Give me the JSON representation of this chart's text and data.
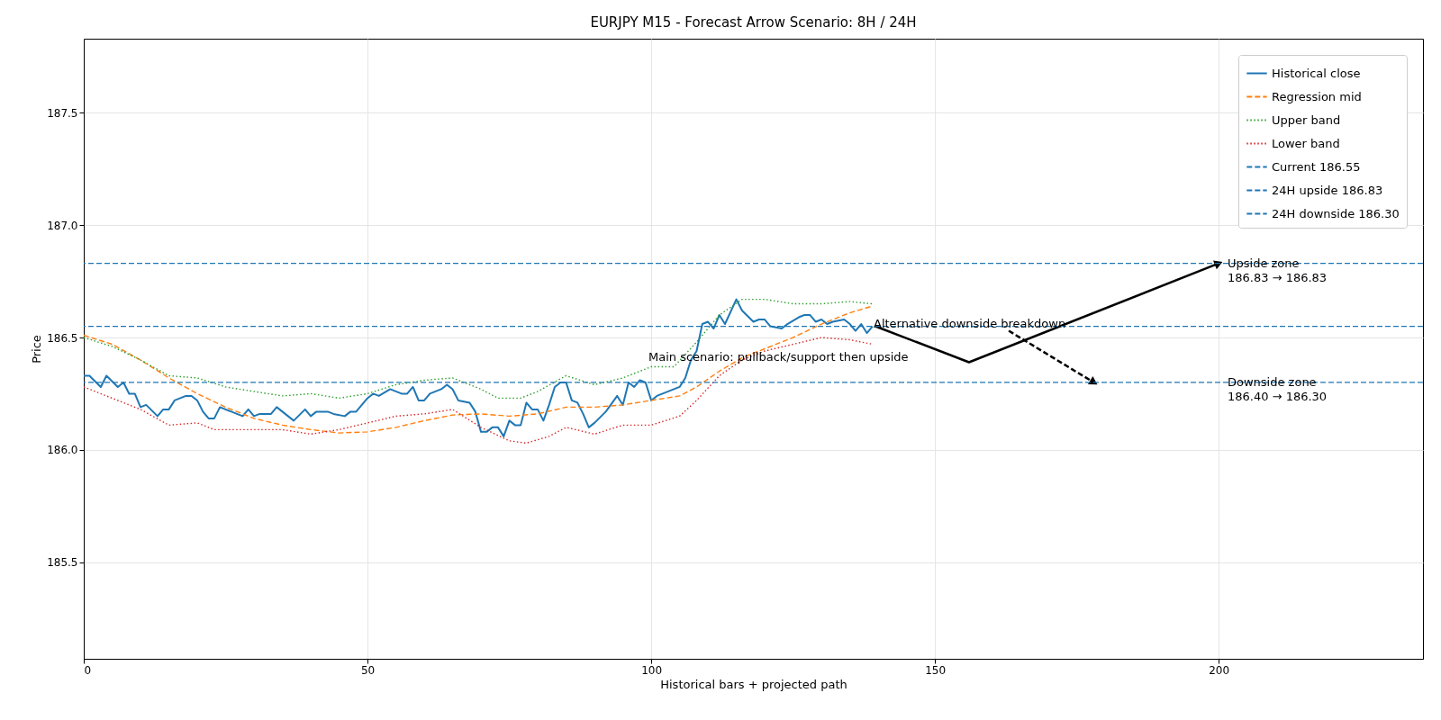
{
  "chart_data": {
    "type": "line",
    "title": "EURJPY M15 - Forecast Arrow Scenario: 8H / 24H",
    "xlabel": "Historical bars + projected path",
    "ylabel": "Price",
    "xlim": [
      0,
      236
    ],
    "xticks": [
      0,
      50,
      100,
      150,
      200
    ],
    "ylim": [
      185.07,
      187.83
    ],
    "yticks": [
      185.5,
      {
        "value": 186,
        "label": "186.0"
      },
      186.5,
      {
        "value": 187,
        "label": "187.0"
      },
      187.5
    ],
    "grid": true,
    "legend": "top right",
    "series": [
      {
        "name": "Historical close",
        "color": "#1f77b4",
        "line_style": "solid",
        "x": [
          0,
          1,
          3,
          4,
          6,
          7,
          8,
          9,
          10,
          11,
          13,
          14,
          15,
          16,
          18,
          19,
          20,
          21,
          22,
          23,
          24,
          26,
          28,
          29,
          30,
          31,
          33,
          34,
          36,
          37,
          39,
          40,
          41,
          43,
          44,
          46,
          47,
          48,
          50,
          51,
          52,
          54,
          56,
          57,
          58,
          59,
          60,
          61,
          63,
          64,
          65,
          66,
          68,
          69,
          70,
          71,
          72,
          73,
          74,
          75,
          76,
          77,
          78,
          79,
          80,
          81,
          82,
          83,
          84,
          85,
          86,
          87,
          88,
          89,
          90,
          92,
          94,
          95,
          96,
          97,
          98,
          99,
          100,
          101,
          103,
          105,
          106,
          107,
          108,
          109,
          110,
          111,
          112,
          113,
          115,
          116,
          118,
          119,
          120,
          121,
          123,
          124,
          126,
          127,
          128,
          129,
          130,
          131,
          132,
          134,
          135,
          136,
          137,
          138,
          139
        ],
        "values": [
          186.33,
          186.33,
          186.28,
          186.33,
          186.28,
          186.3,
          186.25,
          186.25,
          186.19,
          186.2,
          186.15,
          186.18,
          186.18,
          186.22,
          186.24,
          186.24,
          186.22,
          186.17,
          186.14,
          186.14,
          186.19,
          186.17,
          186.15,
          186.18,
          186.15,
          186.16,
          186.16,
          186.19,
          186.15,
          186.13,
          186.18,
          186.15,
          186.17,
          186.17,
          186.16,
          186.15,
          186.17,
          186.17,
          186.23,
          186.25,
          186.24,
          186.27,
          186.25,
          186.25,
          186.28,
          186.22,
          186.22,
          186.25,
          186.27,
          186.29,
          186.27,
          186.22,
          186.21,
          186.17,
          186.08,
          186.08,
          186.1,
          186.1,
          186.06,
          186.13,
          186.11,
          186.11,
          186.21,
          186.18,
          186.18,
          186.13,
          186.2,
          186.28,
          186.3,
          186.3,
          186.22,
          186.21,
          186.16,
          186.1,
          186.12,
          186.17,
          186.24,
          186.2,
          186.3,
          186.28,
          186.31,
          186.3,
          186.22,
          186.24,
          186.26,
          186.28,
          186.32,
          186.4,
          186.44,
          186.56,
          186.57,
          186.54,
          186.6,
          186.56,
          186.67,
          186.62,
          186.57,
          186.58,
          186.58,
          186.55,
          186.54,
          186.56,
          186.59,
          186.6,
          186.6,
          186.57,
          186.58,
          186.56,
          186.57,
          186.58,
          186.56,
          186.53,
          186.56,
          186.52,
          186.55
        ]
      },
      {
        "name": "Regression mid",
        "color": "#ff7f0e",
        "line_style": "dashed",
        "x": [
          0,
          5,
          10,
          15,
          20,
          25,
          30,
          35,
          40,
          45,
          50,
          55,
          60,
          65,
          70,
          75,
          80,
          85,
          90,
          95,
          100,
          105,
          108,
          112,
          116,
          120,
          125,
          130,
          135,
          139
        ],
        "values": [
          186.51,
          186.47,
          186.4,
          186.32,
          186.25,
          186.19,
          186.14,
          186.11,
          186.09,
          186.075,
          186.08,
          186.1,
          186.13,
          186.155,
          186.16,
          186.15,
          186.16,
          186.19,
          186.19,
          186.2,
          186.22,
          186.24,
          186.28,
          186.35,
          186.41,
          186.45,
          186.5,
          186.56,
          186.61,
          186.64
        ]
      },
      {
        "name": "Upper band",
        "color": "#2ca02c",
        "line_style": "dotted",
        "x": [
          0,
          5,
          10,
          15,
          20,
          25,
          30,
          35,
          40,
          45,
          50,
          55,
          60,
          65,
          70,
          73,
          77,
          80,
          85,
          90,
          95,
          100,
          104,
          108,
          112,
          116,
          120,
          125,
          130,
          135,
          139
        ],
        "values": [
          186.5,
          186.46,
          186.4,
          186.33,
          186.32,
          186.28,
          186.26,
          186.24,
          186.25,
          186.23,
          186.25,
          186.29,
          186.31,
          186.32,
          186.27,
          186.23,
          186.23,
          186.26,
          186.33,
          186.29,
          186.32,
          186.37,
          186.37,
          186.48,
          186.6,
          186.67,
          186.67,
          186.65,
          186.65,
          186.66,
          186.65
        ]
      },
      {
        "name": "Lower band",
        "color": "#d62728",
        "line_style": "dotted",
        "x": [
          0,
          5,
          10,
          15,
          20,
          23,
          30,
          35,
          40,
          45,
          50,
          55,
          60,
          65,
          70,
          75,
          78,
          82,
          85,
          90,
          95,
          100,
          105,
          108,
          112,
          116,
          120,
          125,
          130,
          135,
          139
        ],
        "values": [
          186.28,
          186.23,
          186.18,
          186.11,
          186.12,
          186.09,
          186.09,
          186.09,
          186.07,
          186.09,
          186.12,
          186.15,
          186.16,
          186.18,
          186.1,
          186.04,
          186.03,
          186.06,
          186.1,
          186.07,
          186.11,
          186.11,
          186.15,
          186.22,
          186.33,
          186.4,
          186.44,
          186.47,
          186.5,
          186.49,
          186.47
        ]
      },
      {
        "color": "#000000",
        "line_style": "solid",
        "x": [
          139.5,
          156,
          200
        ],
        "values": [
          186.55,
          186.39,
          186.83
        ]
      },
      {
        "color": "#000000",
        "line_style": "dashed",
        "x": [
          163,
          178
        ],
        "values": [
          186.53,
          186.3
        ]
      }
    ],
    "ref_lines": [
      {
        "axis": "y",
        "value": 186.55,
        "label": "Current 186.55",
        "color": "#1f77b4",
        "line_style": "dashed"
      },
      {
        "axis": "y",
        "value": 186.83,
        "label": "24H upside 186.83",
        "color": "#1f77b4",
        "line_style": "dashed"
      },
      {
        "axis": "y",
        "value": 186.3,
        "label": "24H downside 186.30",
        "color": "#1f77b4",
        "line_style": "dashed"
      }
    ],
    "annotations": [
      "Main scenario: pullback/support then upside",
      "Alternative downside breakdown",
      "Upside zone\n186.83 → 186.83",
      "Downside zone\n186.40 → 186.30"
    ]
  }
}
